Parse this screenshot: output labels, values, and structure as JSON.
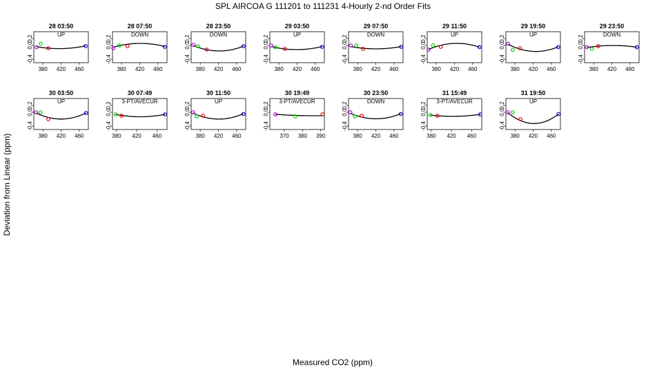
{
  "figure": {
    "title": "SPL   AIRCOA G   111201 to 111231   4-Hourly 2-nd Order Fits",
    "xlabel": "Measured CO2 (ppm)",
    "ylabel": "Deviation from Linear (ppm)"
  },
  "colors": {
    "curve": "#000000",
    "point_colors": [
      "#aa00cc",
      "#00cc00",
      "#dd0000",
      "#0000cc"
    ]
  },
  "chart_data": [
    {
      "type": "scatter",
      "title": "28 03:50",
      "subtitle": "UP",
      "xlim": [
        360,
        480
      ],
      "ylim": [
        -0.5,
        0.4
      ],
      "xticks": [
        380,
        420,
        460
      ],
      "yticks": [
        -0.4,
        0,
        0.2
      ],
      "x": [
        366,
        375,
        392,
        474
      ],
      "y": [
        -0.05,
        0.05,
        -0.08,
        -0.02
      ],
      "fit": [
        -0.035,
        -0.05,
        -0.08,
        -0.01
      ]
    },
    {
      "type": "scatter",
      "title": "28 07:50",
      "subtitle": "DOWN",
      "xlim": [
        360,
        480
      ],
      "ylim": [
        -0.5,
        0.4
      ],
      "xticks": [
        380,
        420,
        460
      ],
      "yticks": [
        -0.4,
        0,
        0.2
      ],
      "x": [
        362,
        375,
        393,
        475
      ],
      "y": [
        -0.08,
        0.0,
        -0.02,
        -0.04
      ],
      "fit": [
        -0.06,
        0.015,
        0.025,
        -0.03
      ]
    },
    {
      "type": "scatter",
      "title": "28 23:50",
      "subtitle": "DOWN",
      "xlim": [
        360,
        480
      ],
      "ylim": [
        -0.5,
        0.4
      ],
      "xticks": [
        380,
        420,
        460
      ],
      "yticks": [
        -0.4,
        0,
        0.2
      ],
      "x": [
        365,
        375,
        394,
        475
      ],
      "y": [
        0.02,
        -0.02,
        -0.12,
        -0.02
      ],
      "fit": [
        0.0,
        -0.06,
        -0.12,
        -0.02
      ]
    },
    {
      "type": "scatter",
      "title": "29 03:50",
      "subtitle": "UP",
      "xlim": [
        360,
        480
      ],
      "ylim": [
        -0.5,
        0.4
      ],
      "xticks": [
        380,
        420,
        460
      ],
      "yticks": [
        -0.4,
        0,
        0.2
      ],
      "x": [
        363,
        372,
        393,
        475
      ],
      "y": [
        0.0,
        -0.05,
        -0.1,
        -0.04
      ],
      "fit": [
        -0.03,
        -0.06,
        -0.1,
        -0.03
      ]
    },
    {
      "type": "scatter",
      "title": "29 07:50",
      "subtitle": "DOWN",
      "xlim": [
        360,
        480
      ],
      "ylim": [
        -0.5,
        0.4
      ],
      "xticks": [
        380,
        420,
        460
      ],
      "yticks": [
        -0.4,
        0,
        0.2
      ],
      "x": [
        365,
        377,
        392,
        476
      ],
      "y": [
        0.0,
        0.0,
        -0.1,
        -0.04
      ],
      "fit": [
        -0.03,
        -0.06,
        -0.08,
        -0.03
      ]
    },
    {
      "type": "scatter",
      "title": "29 11:50",
      "subtitle": "UP",
      "xlim": [
        360,
        480
      ],
      "ylim": [
        -0.5,
        0.4
      ],
      "xticks": [
        380,
        420,
        460
      ],
      "yticks": [
        -0.4,
        0,
        0.2
      ],
      "x": [
        363,
        373,
        390,
        475
      ],
      "y": [
        -0.12,
        0.0,
        -0.04,
        -0.05
      ],
      "fit": [
        -0.12,
        -0.05,
        0.0,
        -0.05
      ]
    },
    {
      "type": "scatter",
      "title": "29 19:50",
      "subtitle": "UP",
      "xlim": [
        360,
        480
      ],
      "ylim": [
        -0.5,
        0.4
      ],
      "xticks": [
        380,
        420,
        460
      ],
      "yticks": [
        -0.4,
        0,
        0.2
      ],
      "x": [
        365,
        375,
        391,
        475
      ],
      "y": [
        0.05,
        -0.13,
        -0.08,
        -0.05
      ],
      "fit": [
        0.04,
        -0.04,
        -0.1,
        -0.04
      ]
    },
    {
      "type": "scatter",
      "title": "29 23:50",
      "subtitle": "DOWN",
      "xlim": [
        360,
        480
      ],
      "ylim": [
        -0.5,
        0.4
      ],
      "xticks": [
        380,
        420,
        460
      ],
      "yticks": [
        -0.4,
        0,
        0.2
      ],
      "x": [
        365,
        376,
        390,
        475
      ],
      "y": [
        -0.05,
        -0.1,
        -0.02,
        -0.05
      ],
      "fit": [
        -0.06,
        -0.04,
        -0.02,
        -0.05
      ]
    },
    {
      "type": "scatter",
      "title": "30 03:50",
      "subtitle": "UP",
      "xlim": [
        360,
        480
      ],
      "ylim": [
        -0.5,
        0.4
      ],
      "xticks": [
        380,
        420,
        460
      ],
      "yticks": [
        -0.4,
        0,
        0.2
      ],
      "x": [
        365,
        375,
        392,
        475
      ],
      "y": [
        0.0,
        0.0,
        -0.2,
        -0.02
      ],
      "fit": [
        -0.02,
        -0.08,
        -0.15,
        -0.02
      ]
    },
    {
      "type": "scatter",
      "title": "30 07:49",
      "subtitle": "3-PT/AVECUR",
      "xlim": [
        372,
        480
      ],
      "ylim": [
        -0.5,
        0.4
      ],
      "xticks": [
        380,
        420,
        460
      ],
      "yticks": [
        -0.4,
        0,
        0.2
      ],
      "x": [
        378,
        390,
        476
      ],
      "y": [
        -0.06,
        -0.1,
        -0.06
      ],
      "fit": [
        -0.06,
        -0.09,
        -0.06
      ]
    },
    {
      "type": "scatter",
      "title": "30 11:50",
      "subtitle": "UP",
      "xlim": [
        360,
        480
      ],
      "ylim": [
        -0.5,
        0.4
      ],
      "xticks": [
        380,
        420,
        460
      ],
      "yticks": [
        -0.4,
        0,
        0.2
      ],
      "x": [
        364,
        372,
        386,
        475
      ],
      "y": [
        0.0,
        -0.12,
        -0.1,
        -0.05
      ],
      "fit": [
        -0.02,
        -0.07,
        -0.13,
        -0.04
      ]
    },
    {
      "type": "scatter",
      "title": "30 19:49",
      "subtitle": "3-PT/AVECUR",
      "xlim": [
        362,
        392
      ],
      "ylim": [
        -0.5,
        0.4
      ],
      "xticks": [
        370,
        380,
        390
      ],
      "yticks": [
        -0.4,
        0,
        0.2
      ],
      "x": [
        365,
        376,
        391
      ],
      "y": [
        -0.06,
        -0.12,
        -0.06
      ],
      "fit": [
        -0.06,
        -0.09,
        -0.1
      ]
    },
    {
      "type": "scatter",
      "title": "30 23:50",
      "subtitle": "DOWN",
      "xlim": [
        360,
        480
      ],
      "ylim": [
        -0.5,
        0.4
      ],
      "xticks": [
        380,
        420,
        460
      ],
      "yticks": [
        -0.4,
        0,
        0.2
      ],
      "x": [
        364,
        374,
        389,
        475
      ],
      "y": [
        0.0,
        -0.12,
        -0.1,
        -0.05
      ],
      "fit": [
        -0.03,
        -0.08,
        -0.14,
        -0.04
      ]
    },
    {
      "type": "scatter",
      "title": "31 15:49",
      "subtitle": "3-PT/AVECUR",
      "xlim": [
        372,
        480
      ],
      "ylim": [
        -0.5,
        0.4
      ],
      "xticks": [
        380,
        420,
        460
      ],
      "yticks": [
        -0.4,
        0,
        0.2
      ],
      "x": [
        378,
        392,
        477
      ],
      "y": [
        -0.08,
        -0.1,
        -0.06
      ],
      "fit": [
        -0.08,
        -0.1,
        -0.06
      ]
    },
    {
      "type": "scatter",
      "title": "31 19:50",
      "subtitle": "UP",
      "xlim": [
        360,
        480
      ],
      "ylim": [
        -0.5,
        0.4
      ],
      "xticks": [
        380,
        420,
        460
      ],
      "yticks": [
        -0.4,
        0,
        0.2
      ],
      "x": [
        364,
        375,
        392,
        476
      ],
      "y": [
        0.0,
        0.0,
        -0.2,
        -0.05
      ],
      "fit": [
        -0.02,
        -0.1,
        -0.25,
        -0.05
      ]
    }
  ]
}
